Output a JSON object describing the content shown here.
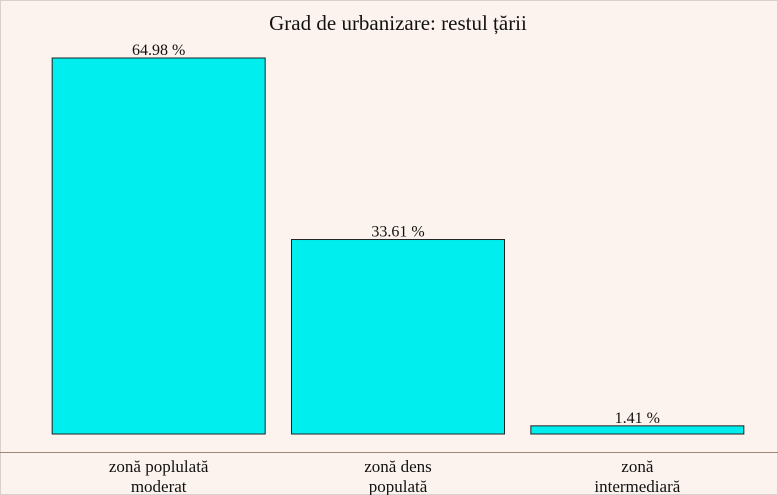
{
  "chart_data": {
    "type": "bar",
    "title": "Grad de urbanizare: restul țării",
    "categories": [
      [
        "zonă poplulată",
        "moderat"
      ],
      [
        "zonă dens",
        "populată"
      ],
      [
        "zonă",
        "intermediară"
      ]
    ],
    "values": [
      64.98,
      33.61,
      1.41
    ],
    "value_labels": [
      "64.98 %",
      "33.61 %",
      "1.41 %"
    ],
    "color": "#00eeee"
  }
}
